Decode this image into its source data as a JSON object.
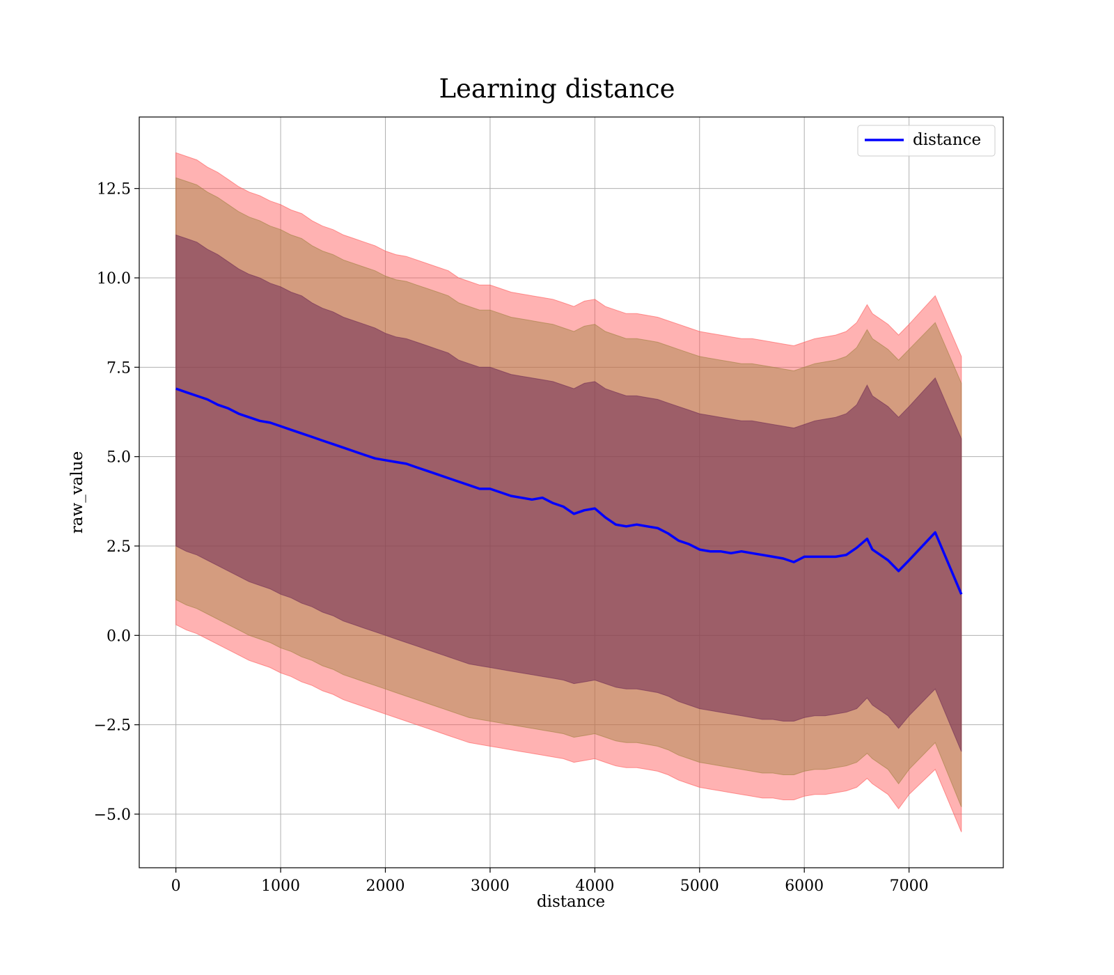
{
  "chart_data": {
    "type": "line",
    "title": "Learning distance",
    "xlabel": "distance",
    "ylabel": "raw_value",
    "xlim": [
      -350,
      7900
    ],
    "ylim": [
      -6.5,
      14.5
    ],
    "grid": true,
    "legend": {
      "placement": "top-right",
      "entries": [
        "distance"
      ]
    },
    "x_ticks": [
      0,
      1000,
      2000,
      3000,
      4000,
      5000,
      6000,
      7000
    ],
    "x_tick_labels": [
      "0",
      "1000",
      "2000",
      "3000",
      "4000",
      "5000",
      "6000",
      "7000"
    ],
    "y_ticks": [
      -5,
      -2.5,
      0,
      2.5,
      5,
      7.5,
      10,
      12.5
    ],
    "y_tick_labels": [
      "−5.0",
      "−2.5",
      "0.0",
      "2.5",
      "5.0",
      "7.5",
      "10.0",
      "12.5"
    ],
    "x": [
      0,
      100,
      200,
      300,
      400,
      500,
      600,
      700,
      800,
      900,
      1000,
      1100,
      1200,
      1300,
      1400,
      1500,
      1600,
      1700,
      1800,
      1900,
      2000,
      2100,
      2200,
      2300,
      2400,
      2500,
      2600,
      2700,
      2800,
      2900,
      3000,
      3100,
      3200,
      3300,
      3400,
      3500,
      3600,
      3700,
      3800,
      3900,
      4000,
      4100,
      4200,
      4300,
      4400,
      4500,
      4600,
      4700,
      4800,
      4900,
      5000,
      5100,
      5200,
      5300,
      5400,
      5500,
      5600,
      5700,
      5800,
      5900,
      6000,
      6100,
      6200,
      6300,
      6400,
      6500,
      6600,
      6650,
      6800,
      6900,
      7000,
      7250,
      7500
    ],
    "series": [
      {
        "name": "distance",
        "color": "#0000ff",
        "values": [
          6.9,
          6.8,
          6.7,
          6.6,
          6.45,
          6.35,
          6.2,
          6.1,
          6.0,
          5.95,
          5.85,
          5.75,
          5.65,
          5.55,
          5.45,
          5.35,
          5.25,
          5.15,
          5.05,
          4.95,
          4.9,
          4.85,
          4.8,
          4.7,
          4.6,
          4.5,
          4.4,
          4.3,
          4.2,
          4.1,
          4.1,
          4.0,
          3.9,
          3.85,
          3.8,
          3.85,
          3.7,
          3.6,
          3.4,
          3.5,
          3.55,
          3.3,
          3.1,
          3.05,
          3.1,
          3.05,
          3.0,
          2.85,
          2.65,
          2.55,
          2.4,
          2.35,
          2.35,
          2.3,
          2.35,
          2.3,
          2.25,
          2.2,
          2.15,
          2.05,
          2.2,
          2.2,
          2.2,
          2.2,
          2.25,
          2.45,
          2.7,
          2.4,
          2.1,
          1.8,
          2.1,
          2.88,
          1.15
        ]
      }
    ],
    "bands": [
      {
        "color": "#ff5555",
        "opacity": 0.45,
        "upper": [
          13.5,
          13.4,
          13.3,
          13.1,
          12.95,
          12.75,
          12.55,
          12.4,
          12.3,
          12.15,
          12.05,
          11.9,
          11.8,
          11.6,
          11.45,
          11.35,
          11.2,
          11.1,
          11.0,
          10.9,
          10.75,
          10.65,
          10.6,
          10.5,
          10.4,
          10.3,
          10.2,
          10.0,
          9.9,
          9.8,
          9.8,
          9.7,
          9.6,
          9.55,
          9.5,
          9.45,
          9.4,
          9.3,
          9.2,
          9.35,
          9.4,
          9.2,
          9.1,
          9.0,
          9.0,
          8.95,
          8.9,
          8.8,
          8.7,
          8.6,
          8.5,
          8.45,
          8.4,
          8.35,
          8.3,
          8.3,
          8.25,
          8.2,
          8.15,
          8.1,
          8.2,
          8.3,
          8.35,
          8.4,
          8.5,
          8.75,
          9.25,
          9.0,
          8.7,
          8.4,
          8.7,
          9.5,
          7.8
        ],
        "lower": [
          0.3,
          0.15,
          0.05,
          -0.1,
          -0.25,
          -0.4,
          -0.55,
          -0.7,
          -0.8,
          -0.9,
          -1.05,
          -1.15,
          -1.3,
          -1.4,
          -1.55,
          -1.65,
          -1.8,
          -1.9,
          -2.0,
          -2.1,
          -2.2,
          -2.3,
          -2.4,
          -2.5,
          -2.6,
          -2.7,
          -2.8,
          -2.9,
          -3.0,
          -3.05,
          -3.1,
          -3.15,
          -3.2,
          -3.25,
          -3.3,
          -3.35,
          -3.4,
          -3.45,
          -3.55,
          -3.5,
          -3.45,
          -3.55,
          -3.65,
          -3.7,
          -3.7,
          -3.75,
          -3.8,
          -3.9,
          -4.05,
          -4.15,
          -4.25,
          -4.3,
          -4.35,
          -4.4,
          -4.45,
          -4.5,
          -4.55,
          -4.55,
          -4.6,
          -4.6,
          -4.5,
          -4.45,
          -4.45,
          -4.4,
          -4.35,
          -4.25,
          -4.0,
          -4.15,
          -4.45,
          -4.85,
          -4.45,
          -3.75,
          -5.5
        ]
      },
      {
        "color": "#a08040",
        "opacity": 0.45,
        "upper": [
          12.8,
          12.7,
          12.6,
          12.4,
          12.25,
          12.05,
          11.85,
          11.7,
          11.6,
          11.45,
          11.35,
          11.2,
          11.1,
          10.9,
          10.75,
          10.65,
          10.5,
          10.4,
          10.3,
          10.2,
          10.05,
          9.95,
          9.9,
          9.8,
          9.7,
          9.6,
          9.5,
          9.3,
          9.2,
          9.1,
          9.1,
          9.0,
          8.9,
          8.85,
          8.8,
          8.75,
          8.7,
          8.6,
          8.5,
          8.65,
          8.7,
          8.5,
          8.4,
          8.3,
          8.3,
          8.25,
          8.2,
          8.1,
          8.0,
          7.9,
          7.8,
          7.75,
          7.7,
          7.65,
          7.6,
          7.6,
          7.55,
          7.5,
          7.45,
          7.4,
          7.5,
          7.6,
          7.65,
          7.7,
          7.8,
          8.05,
          8.55,
          8.3,
          8.0,
          7.7,
          8.0,
          8.75,
          7.05
        ],
        "lower": [
          1.0,
          0.85,
          0.75,
          0.6,
          0.45,
          0.3,
          0.15,
          0.0,
          -0.1,
          -0.2,
          -0.35,
          -0.45,
          -0.6,
          -0.7,
          -0.85,
          -0.95,
          -1.1,
          -1.2,
          -1.3,
          -1.4,
          -1.5,
          -1.6,
          -1.7,
          -1.8,
          -1.9,
          -2.0,
          -2.1,
          -2.2,
          -2.3,
          -2.35,
          -2.4,
          -2.45,
          -2.5,
          -2.55,
          -2.6,
          -2.65,
          -2.7,
          -2.75,
          -2.85,
          -2.8,
          -2.75,
          -2.85,
          -2.95,
          -3.0,
          -3.0,
          -3.05,
          -3.1,
          -3.2,
          -3.35,
          -3.45,
          -3.55,
          -3.6,
          -3.65,
          -3.7,
          -3.75,
          -3.8,
          -3.85,
          -3.85,
          -3.9,
          -3.9,
          -3.8,
          -3.75,
          -3.75,
          -3.7,
          -3.65,
          -3.55,
          -3.3,
          -3.45,
          -3.75,
          -4.15,
          -3.75,
          -3.0,
          -4.8
        ]
      },
      {
        "color": "#6f2c55",
        "opacity": 0.55,
        "upper": [
          11.2,
          11.1,
          11.0,
          10.8,
          10.65,
          10.45,
          10.25,
          10.1,
          10.0,
          9.85,
          9.75,
          9.6,
          9.5,
          9.3,
          9.15,
          9.05,
          8.9,
          8.8,
          8.7,
          8.6,
          8.45,
          8.35,
          8.3,
          8.2,
          8.1,
          8.0,
          7.9,
          7.7,
          7.6,
          7.5,
          7.5,
          7.4,
          7.3,
          7.25,
          7.2,
          7.15,
          7.1,
          7.0,
          6.9,
          7.05,
          7.1,
          6.9,
          6.8,
          6.7,
          6.7,
          6.65,
          6.6,
          6.5,
          6.4,
          6.3,
          6.2,
          6.15,
          6.1,
          6.05,
          6.0,
          6.0,
          5.95,
          5.9,
          5.85,
          5.8,
          5.9,
          6.0,
          6.05,
          6.1,
          6.2,
          6.45,
          7.0,
          6.7,
          6.4,
          6.1,
          6.4,
          7.2,
          5.5
        ],
        "lower": [
          2.5,
          2.35,
          2.25,
          2.1,
          1.95,
          1.8,
          1.65,
          1.5,
          1.4,
          1.3,
          1.15,
          1.05,
          0.9,
          0.8,
          0.65,
          0.55,
          0.4,
          0.3,
          0.2,
          0.1,
          0.0,
          -0.1,
          -0.2,
          -0.3,
          -0.4,
          -0.5,
          -0.6,
          -0.7,
          -0.8,
          -0.85,
          -0.9,
          -0.95,
          -1.0,
          -1.05,
          -1.1,
          -1.15,
          -1.2,
          -1.25,
          -1.35,
          -1.3,
          -1.25,
          -1.35,
          -1.45,
          -1.5,
          -1.5,
          -1.55,
          -1.6,
          -1.7,
          -1.85,
          -1.95,
          -2.05,
          -2.1,
          -2.15,
          -2.2,
          -2.25,
          -2.3,
          -2.35,
          -2.35,
          -2.4,
          -2.4,
          -2.3,
          -2.25,
          -2.25,
          -2.2,
          -2.15,
          -2.05,
          -1.75,
          -1.95,
          -2.25,
          -2.6,
          -2.25,
          -1.5,
          -3.25
        ]
      }
    ]
  }
}
